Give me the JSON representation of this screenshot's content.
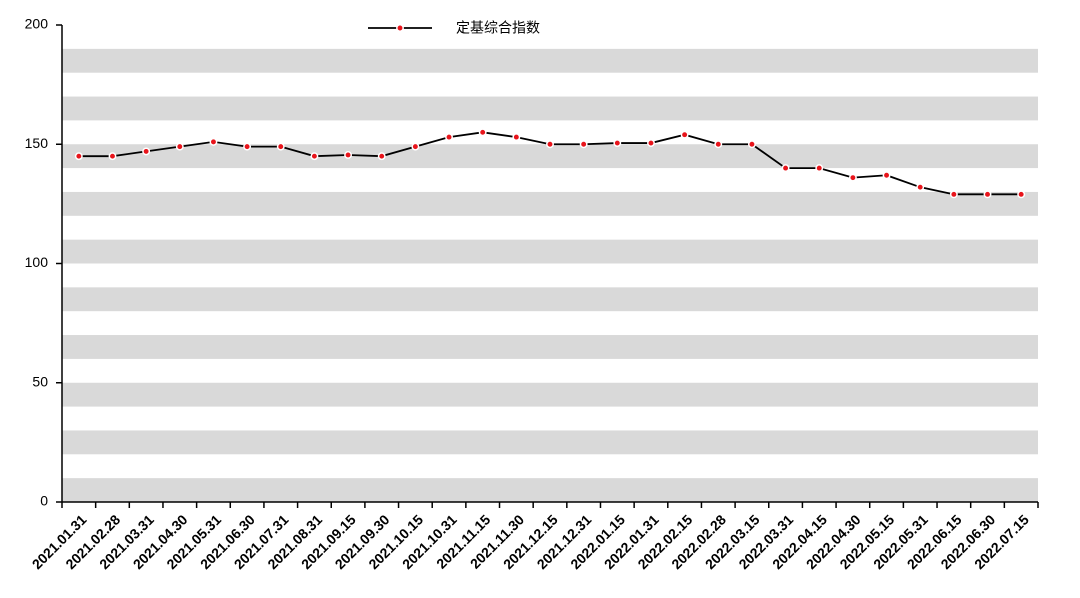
{
  "chart_data": {
    "type": "line",
    "categories": [
      "2021.01.31",
      "2021.02.28",
      "2021.03.31",
      "2021.04.30",
      "2021.05.31",
      "2021.06.30",
      "2021.07.31",
      "2021.08.31",
      "2021.09.15",
      "2021.09.30",
      "2021.10.15",
      "2021.10.31",
      "2021.11.15",
      "2021.11.30",
      "2021.12.15",
      "2021.12.31",
      "2022.01.15",
      "2022.01.31",
      "2022.02.15",
      "2022.02.28",
      "2022.03.15",
      "2022.03.31",
      "2022.04.15",
      "2022.04.30",
      "2022.05.15",
      "2022.05.31",
      "2022.06.15",
      "2022.06.30",
      "2022.07.15"
    ],
    "series": [
      {
        "name": "定基综合指数",
        "color": "#000000",
        "marker_color": "#e8141b",
        "values": [
          145,
          145,
          147,
          149,
          151,
          149,
          149,
          145,
          145.5,
          145,
          149,
          153,
          155,
          153,
          150,
          150,
          150.5,
          150.5,
          154,
          150,
          150,
          140,
          140,
          136,
          137,
          132,
          129,
          129,
          129
        ]
      }
    ],
    "ylim": [
      0,
      200
    ],
    "yticks": [
      0,
      50,
      100,
      150,
      200
    ],
    "grid": true,
    "legend": "top"
  }
}
